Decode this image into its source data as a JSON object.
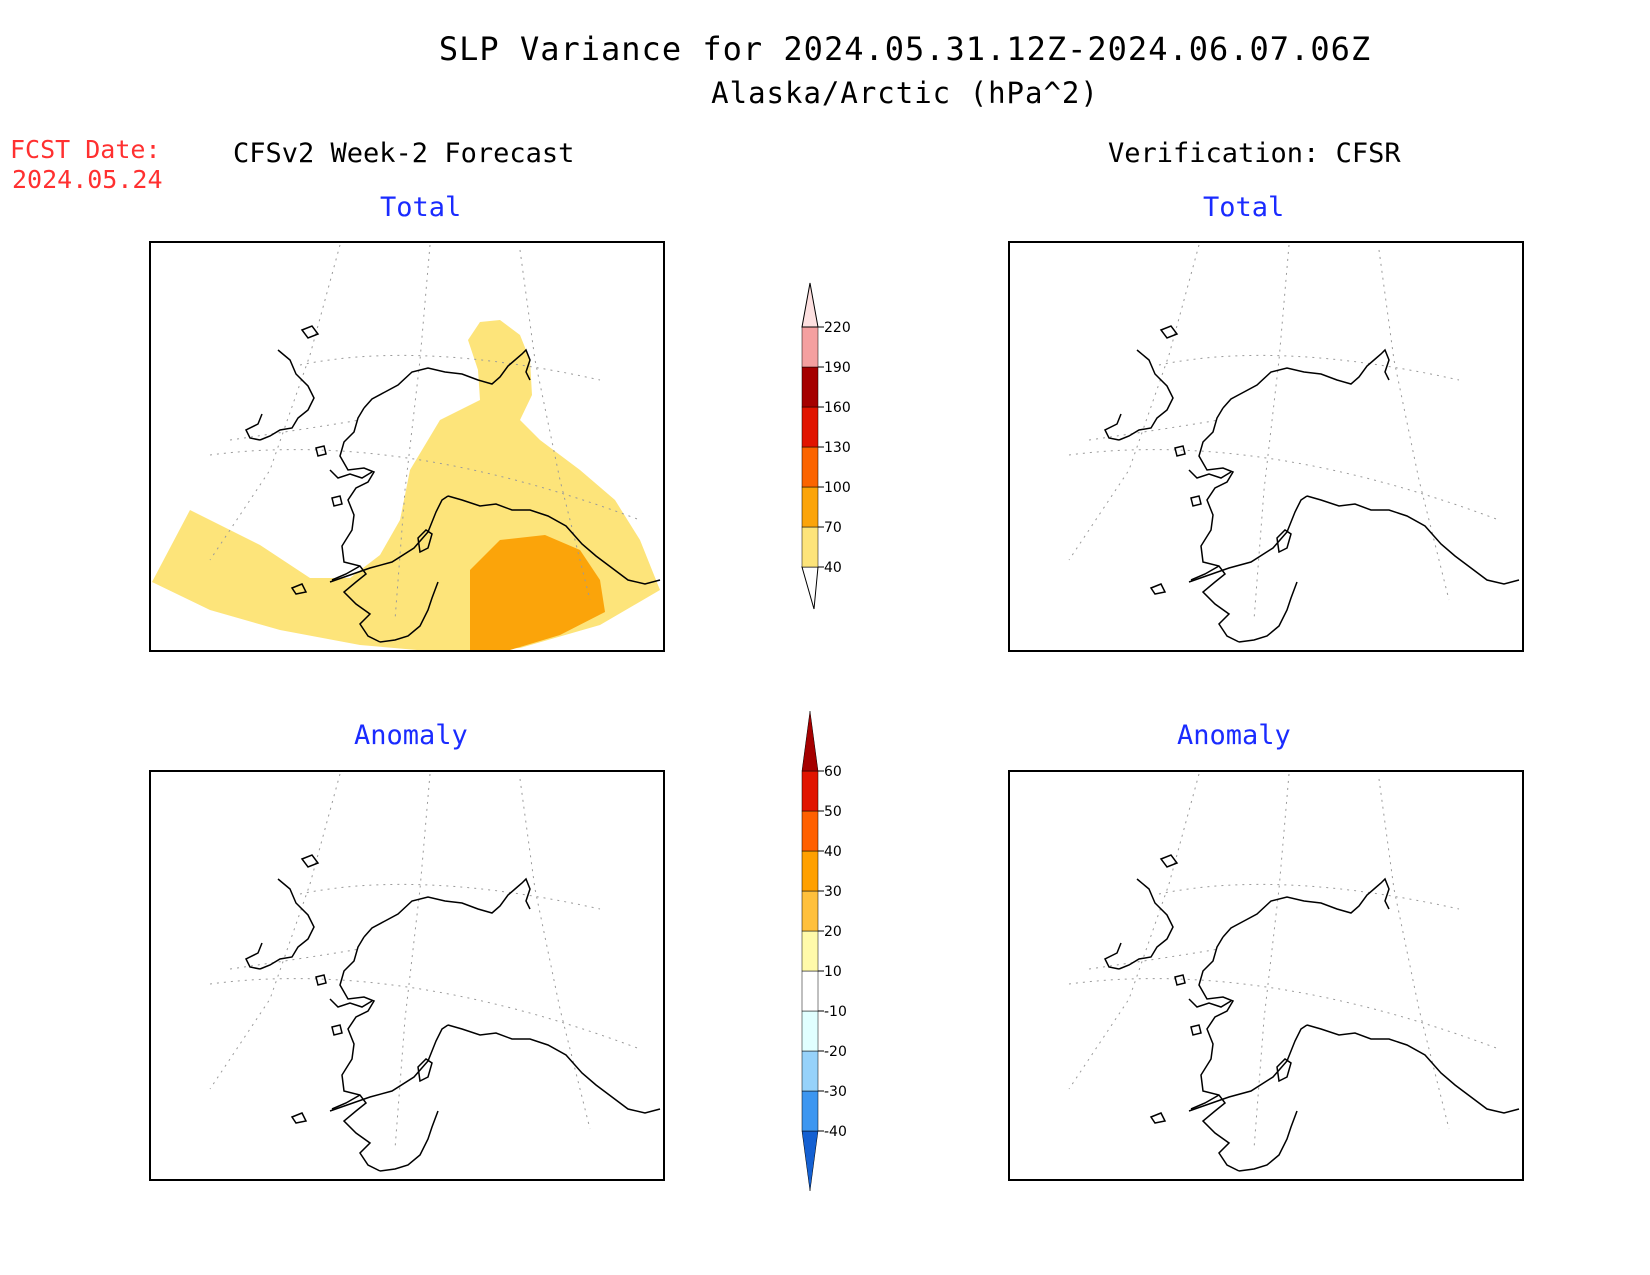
{
  "title": {
    "line1": "SLP Variance for 2024.05.31.12Z-2024.06.07.06Z",
    "line2": "Alaska/Arctic (hPa^2)"
  },
  "forecast_date": {
    "label": "FCST Date:",
    "value": "2024.05.24"
  },
  "columns": {
    "left": "CFSv2 Week-2 Forecast",
    "right": "Verification: CFSR"
  },
  "panels": {
    "forecast_total": "Total",
    "verification_total": "Total",
    "forecast_anomaly": "Anomaly",
    "verification_anomaly": "Anomaly"
  },
  "colorbars": {
    "total": {
      "labels": [
        "40",
        "70",
        "100",
        "130",
        "160",
        "190",
        "220"
      ],
      "colors": [
        "#fde47a",
        "#fba40a",
        "#fb6400",
        "#e11400",
        "#a50000",
        "#f4a0a0",
        "#fde0e0"
      ]
    },
    "anomaly": {
      "labels": [
        "-40",
        "-30",
        "-20",
        "-10",
        "10",
        "20",
        "30",
        "40",
        "50",
        "60"
      ],
      "colors": [
        "#1460d2",
        "#3c96f0",
        "#96d2fa",
        "#e1ffff",
        "#ffffff",
        "#fffaaa",
        "#ffc03c",
        "#ffa000",
        "#ff6000",
        "#e11400",
        "#a50000"
      ]
    }
  }
}
